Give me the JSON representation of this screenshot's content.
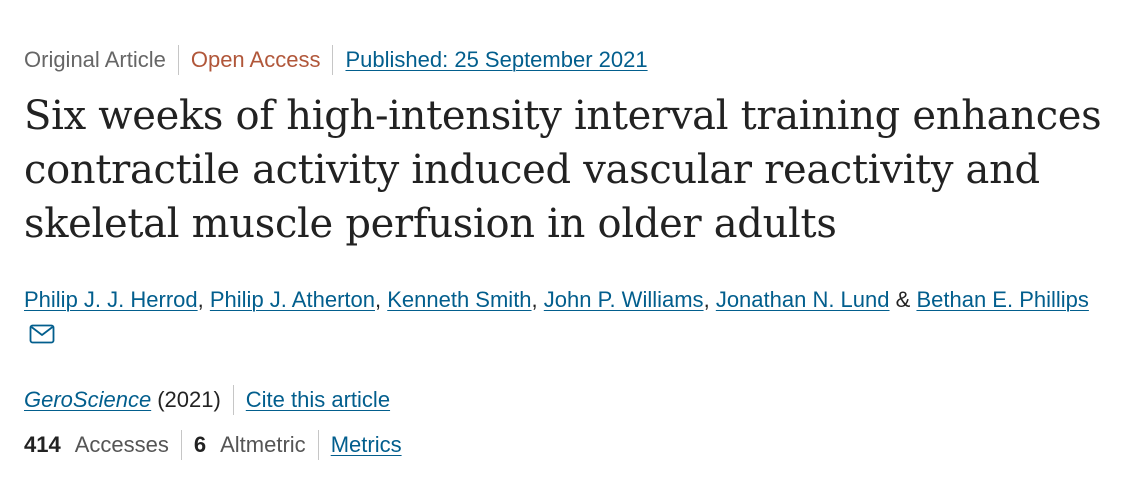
{
  "meta": {
    "article_type": "Original Article",
    "access": "Open Access",
    "published": "Published: 25 September 2021"
  },
  "title": "Six weeks of high-intensity interval training enhances contractile activity induced vascular reactivity and skeletal muscle perfusion in older adults",
  "authors": [
    "Philip J. J. Herrod",
    "Philip J. Atherton",
    "Kenneth Smith",
    "John P. Williams",
    "Jonathan N. Lund",
    "Bethan E. Phillips"
  ],
  "author_separator": ",",
  "author_conjunction": "&",
  "journal": {
    "name": "GeroScience",
    "year": "(2021)",
    "cite_label": "Cite this article"
  },
  "metrics": {
    "accesses_count": "414",
    "accesses_label": "Accesses",
    "altmetric_count": "6",
    "altmetric_label": "Altmetric",
    "metrics_link": "Metrics"
  },
  "icons": {
    "email": "envelope-icon"
  },
  "colors": {
    "link": "#025e8d",
    "open_access": "#b1573a",
    "muted": "#666666",
    "text": "#222222"
  }
}
